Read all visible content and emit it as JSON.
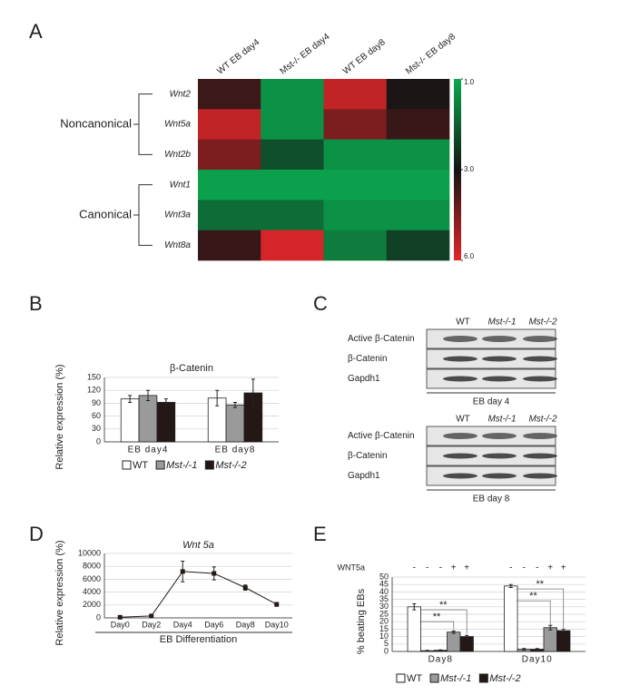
{
  "panels": [
    "A",
    "B",
    "C",
    "D",
    "E"
  ],
  "chart_data": [
    {
      "type": "heatmap",
      "columns": [
        "WT EB day4",
        "Mst-/- EB day4",
        "WT EB day8",
        "Mst-/- EB day8"
      ],
      "rows": [
        "Wnt2",
        "Wnt5a",
        "Wnt2b",
        "Wnt1",
        "Wnt3a",
        "Wnt8a"
      ],
      "row_groups": [
        "Noncanonical",
        "Canonical"
      ],
      "values": [
        [
          3.6,
          1.3,
          5.5,
          3.1
        ],
        [
          5.5,
          1.3,
          4.5,
          3.5
        ],
        [
          4.5,
          2.2,
          1.3,
          1.3
        ],
        [
          1.1,
          1.1,
          1.1,
          1.1
        ],
        [
          1.8,
          1.8,
          1.3,
          1.3
        ],
        [
          3.5,
          5.8,
          1.6,
          2.4
        ]
      ],
      "colormap": [
        "#0aa84f",
        "#141414",
        "#e3262a"
      ],
      "cticks": [
        {
          "value": 1,
          "label": "1.0"
        },
        {
          "value": 3,
          "label": "3.0"
        },
        {
          "value": 6,
          "label": "6.0"
        }
      ],
      "clim": [
        1,
        6
      ]
    },
    {
      "type": "bar",
      "title": "β-Catenin",
      "ylabel": "Relative expression (%)",
      "categories": [
        "EB day4",
        "EB day8"
      ],
      "series": [
        {
          "name": "WT",
          "color": "#ffffff",
          "values": [
            100,
            102
          ],
          "errors": [
            8,
            18
          ]
        },
        {
          "name": "Mst-/-1",
          "color": "#9a9a9a",
          "values": [
            108,
            86
          ],
          "errors": [
            12,
            6
          ]
        },
        {
          "name": "Mst-/-2",
          "color": "#231815",
          "values": [
            92,
            114
          ],
          "errors": [
            8,
            32
          ]
        }
      ],
      "ylim": [
        0,
        150
      ],
      "yticks": [
        0,
        30,
        60,
        90,
        120,
        150
      ],
      "grid": true
    },
    {
      "type": "line",
      "title": "Wnt 5a",
      "ylabel": "Relative expression (%)",
      "xlabel": "EB Differentiation",
      "categories": [
        "Day0",
        "Day2",
        "Day4",
        "Day6",
        "Day8",
        "Day10"
      ],
      "values": [
        100,
        300,
        7200,
        6900,
        4700,
        2100
      ],
      "errors": [
        100,
        100,
        1600,
        1000,
        400,
        300
      ],
      "color": "#231815",
      "ylim": [
        0,
        10000
      ],
      "yticks": [
        0,
        2000,
        4000,
        6000,
        8000,
        10000
      ],
      "grid": true
    },
    {
      "type": "bar",
      "ylabel": "% beating EBs",
      "treatment_label": "WNT5a",
      "categories": [
        "Day8",
        "Day10"
      ],
      "series": [
        {
          "color": "#ffffff",
          "treatment": "-",
          "values": [
            30,
            44
          ],
          "errors": [
            2,
            1
          ]
        },
        {
          "color": "#9a9a9a",
          "treatment": "-",
          "values": [
            0.5,
            1.5
          ],
          "errors": [
            0.3,
            0.5
          ]
        },
        {
          "color": "#231815",
          "treatment": "-",
          "values": [
            0.8,
            1.5
          ],
          "errors": [
            0.3,
            0.5
          ]
        },
        {
          "color": "#9a9a9a",
          "treatment": "+",
          "values": [
            13,
            16
          ],
          "errors": [
            0.8,
            1.5
          ]
        },
        {
          "color": "#231815",
          "treatment": "+",
          "values": [
            10,
            14
          ],
          "errors": [
            0.8,
            1
          ]
        }
      ],
      "legend": [
        {
          "name": "WT",
          "color": "#ffffff"
        },
        {
          "name": "Mst-/-1",
          "color": "#9a9a9a"
        },
        {
          "name": "Mst-/-2",
          "color": "#231815"
        }
      ],
      "significance": [
        [
          "**",
          "**"
        ],
        [
          "**",
          "**"
        ]
      ],
      "ylim": [
        0,
        50
      ],
      "yticks": [
        0,
        5,
        10,
        15,
        20,
        25,
        30,
        35,
        40,
        45,
        50
      ],
      "grid": true
    }
  ],
  "blots": [
    {
      "columns": [
        "WT",
        "Mst-/-1",
        "Mst-/-2"
      ],
      "rows": [
        "Active β-Catenin",
        "β-Catenin",
        "Gapdh1"
      ],
      "caption": "EB day 4"
    },
    {
      "columns": [
        "WT",
        "Mst-/-1",
        "Mst-/-2"
      ],
      "rows": [
        "Active β-Catenin",
        "β-Catenin",
        "Gapdh1"
      ],
      "caption": "EB day 8"
    }
  ]
}
